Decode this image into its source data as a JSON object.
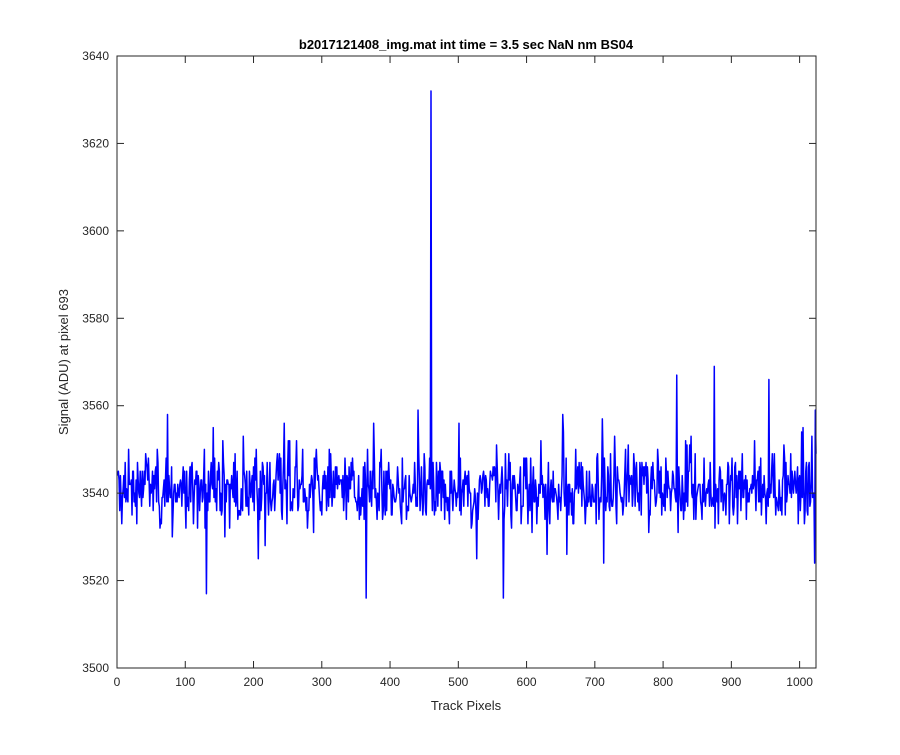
{
  "chart_data": {
    "type": "line",
    "title": "b2017121408_img.mat int time = 3.5 sec  NaN nm BS04",
    "xlabel": "Track Pixels",
    "ylabel": "Signal (ADU) at pixel 693",
    "xlim": [
      0,
      1024
    ],
    "ylim": [
      3500,
      3640
    ],
    "xticks": [
      0,
      100,
      200,
      300,
      400,
      500,
      600,
      700,
      800,
      900,
      1000
    ],
    "yticks": [
      3500,
      3520,
      3540,
      3560,
      3580,
      3600,
      3620,
      3640
    ],
    "grid": false,
    "legend": "none",
    "series": [
      {
        "color": "#0000ff",
        "x_start": 1,
        "x_step": 1,
        "points": 1024,
        "baseline_mean": 3541,
        "noise_amplitude": 10,
        "spike": {
          "x": 460,
          "y": 3632
        },
        "notable_points": [
          {
            "x": 365,
            "y": 3516
          },
          {
            "x": 131,
            "y": 3517
          },
          {
            "x": 566,
            "y": 3516
          },
          {
            "x": 875,
            "y": 3569
          },
          {
            "x": 955,
            "y": 3566
          },
          {
            "x": 820,
            "y": 3567
          },
          {
            "x": 1022,
            "y": 3524
          }
        ]
      }
    ]
  }
}
